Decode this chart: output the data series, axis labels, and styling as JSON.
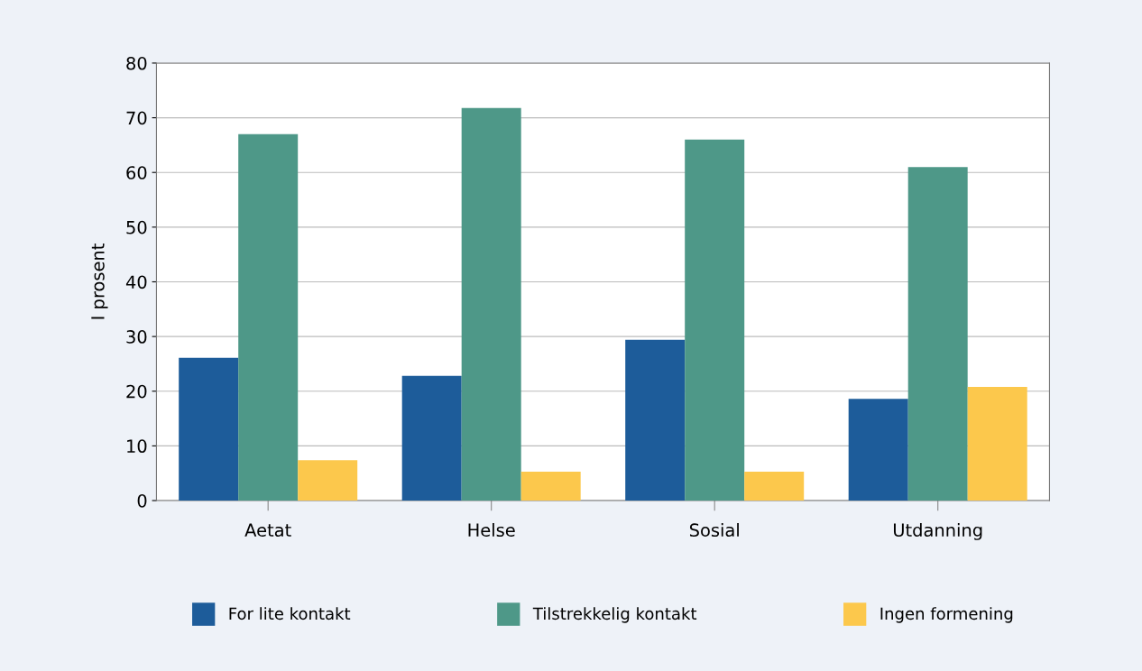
{
  "chart_data": {
    "type": "bar",
    "ylabel": "I prosent",
    "categories": [
      "Aetat",
      "Helse",
      "Sosial",
      "Utdanning"
    ],
    "series": [
      {
        "name": "For lite kontakt",
        "color": "#1d5c9a",
        "values": [
          26.1,
          22.8,
          29.4,
          18.6
        ]
      },
      {
        "name": "Tilstrekkelig kontakt",
        "color": "#4e9888",
        "values": [
          67,
          71.8,
          66,
          61
        ]
      },
      {
        "name": "Ingen formening",
        "color": "#fcc84c",
        "values": [
          7.4,
          5.3,
          5.3,
          20.8
        ]
      }
    ],
    "ylim": [
      0,
      80
    ],
    "yticks": [
      0,
      10,
      20,
      30,
      40,
      50,
      60,
      70,
      80
    ],
    "grid": "y",
    "legend": "bottom"
  }
}
